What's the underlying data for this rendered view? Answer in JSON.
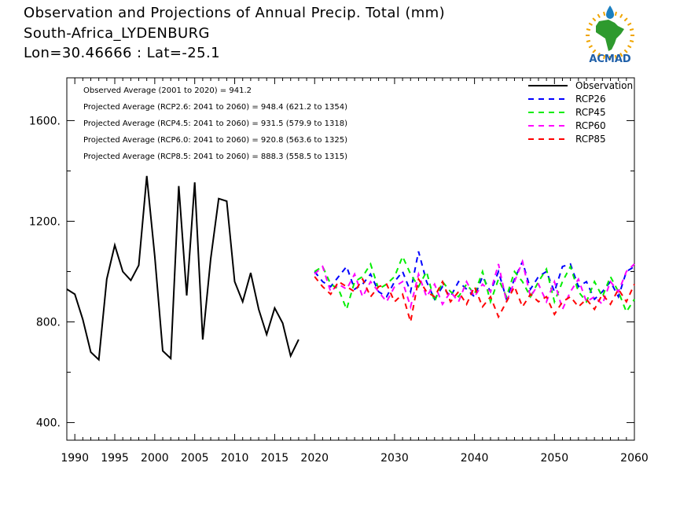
{
  "titles": [
    "Observation and Projections of Annual Precip. Total (mm)",
    "South-Africa_LYDENBURG",
    "Lon=30.46666 : Lat=-25.1"
  ],
  "logo": {
    "text": "ACMAD",
    "colors": {
      "africa": "#2e9a2e",
      "ring": "#f0a500",
      "drop": "#1a7fc0",
      "text": "#1f5fa8"
    }
  },
  "chart_data": {
    "type": "line",
    "xlim": [
      1989,
      2060
    ],
    "ylim": [
      330,
      1770
    ],
    "x_ticks": [
      1990,
      1995,
      2000,
      2005,
      2010,
      2015,
      2020,
      2030,
      2040,
      2050,
      2060
    ],
    "y_ticks": [
      400,
      800,
      1200,
      1600
    ],
    "y_tick_labels": [
      "400.",
      "800.",
      "1200.",
      "1600."
    ],
    "stats": [
      "Observed Average (2001 to 2020) = 941.2",
      "Projected Average (RCP2.6: 2041 to 2060) = 948.4 (621.2 to 1354)",
      "Projected Average (RCP4.5: 2041 to 2060) = 931.5 (579.9 to 1318)",
      "Projected Average (RCP6.0: 2041 to 2060) = 920.8 (563.6 to 1325)",
      "Projected Average (RCP8.5: 2041 to 2060) = 888.3 (558.5 to 1315)"
    ],
    "legend_position": "top-right",
    "series": [
      {
        "name": "Observation",
        "color": "#000000",
        "dashed": false,
        "x": [
          1989,
          1990,
          1991,
          1992,
          1993,
          1994,
          1995,
          1996,
          1997,
          1998,
          1999,
          2000,
          2001,
          2002,
          2003,
          2004,
          2005,
          2006,
          2007,
          2008,
          2009,
          2010,
          2011,
          2012,
          2013,
          2014,
          2015,
          2016,
          2017,
          2018,
          2019
        ],
        "values": [
          930,
          910,
          810,
          680,
          650,
          970,
          1105,
          1000,
          965,
          1025,
          1380,
          1060,
          685,
          655,
          1340,
          905,
          1355,
          730,
          1050,
          1290,
          1280,
          960,
          880,
          995,
          850,
          750,
          855,
          795,
          665,
          730,
          null
        ]
      },
      {
        "name": "RCP26",
        "color": "#0000ff",
        "dashed": true,
        "x": [
          2020,
          2021,
          2022,
          2023,
          2024,
          2025,
          2026,
          2027,
          2028,
          2029,
          2030,
          2031,
          2032,
          2033,
          2034,
          2035,
          2036,
          2037,
          2038,
          2039,
          2040,
          2041,
          2042,
          2043,
          2044,
          2045,
          2046,
          2047,
          2048,
          2049,
          2050,
          2051,
          2052,
          2053,
          2054,
          2055,
          2056,
          2057,
          2058,
          2059,
          2060
        ],
        "values": [
          1000,
          960,
          940,
          980,
          1020,
          930,
          950,
          990,
          920,
          900,
          960,
          1000,
          920,
          1080,
          960,
          890,
          940,
          900,
          960,
          930,
          900,
          980,
          920,
          1000,
          890,
          970,
          1040,
          930,
          980,
          1000,
          920,
          1020,
          1030,
          940,
          960,
          890,
          920,
          960,
          900,
          1000,
          1020
        ]
      },
      {
        "name": "RCP45",
        "color": "#00ee00",
        "dashed": true,
        "x": [
          2020,
          2021,
          2022,
          2023,
          2024,
          2025,
          2026,
          2027,
          2028,
          2029,
          2030,
          2031,
          2032,
          2033,
          2034,
          2035,
          2036,
          2037,
          2038,
          2039,
          2040,
          2041,
          2042,
          2043,
          2044,
          2045,
          2046,
          2047,
          2048,
          2049,
          2050,
          2051,
          2052,
          2053,
          2054,
          2055,
          2056,
          2057,
          2058,
          2059,
          2060
        ],
        "values": [
          1000,
          1020,
          950,
          930,
          850,
          960,
          980,
          1030,
          930,
          950,
          980,
          1060,
          990,
          940,
          1000,
          880,
          960,
          920,
          900,
          950,
          910,
          1000,
          880,
          970,
          900,
          1000,
          960,
          900,
          960,
          1010,
          880,
          960,
          1020,
          920,
          880,
          960,
          900,
          980,
          920,
          840,
          890
        ]
      },
      {
        "name": "RCP60",
        "color": "#ff00ff",
        "dashed": true,
        "x": [
          2020,
          2021,
          2022,
          2023,
          2024,
          2025,
          2026,
          2027,
          2028,
          2029,
          2030,
          2031,
          2032,
          2033,
          2034,
          2035,
          2036,
          2037,
          2038,
          2039,
          2040,
          2041,
          2042,
          2043,
          2044,
          2045,
          2046,
          2047,
          2048,
          2049,
          2050,
          2051,
          2052,
          2053,
          2054,
          2055,
          2056,
          2057,
          2058,
          2059,
          2060
        ],
        "values": [
          990,
          1020,
          920,
          950,
          930,
          990,
          900,
          960,
          920,
          880,
          940,
          960,
          860,
          990,
          900,
          950,
          870,
          920,
          880,
          960,
          900,
          950,
          920,
          1030,
          880,
          960,
          1040,
          900,
          950,
          880,
          960,
          850,
          920,
          970,
          880,
          900,
          870,
          960,
          920,
          1000,
          1030
        ]
      },
      {
        "name": "RCP85",
        "color": "#ff0000",
        "dashed": true,
        "x": [
          2020,
          2021,
          2022,
          2023,
          2024,
          2025,
          2026,
          2027,
          2028,
          2029,
          2030,
          2031,
          2032,
          2033,
          2034,
          2035,
          2036,
          2037,
          2038,
          2039,
          2040,
          2041,
          2042,
          2043,
          2044,
          2045,
          2046,
          2047,
          2048,
          2049,
          2050,
          2051,
          2052,
          2053,
          2054,
          2055,
          2056,
          2057,
          2058,
          2059,
          2060
        ],
        "values": [
          980,
          940,
          910,
          960,
          940,
          920,
          970,
          900,
          940,
          950,
          880,
          910,
          800,
          970,
          920,
          900,
          960,
          880,
          920,
          870,
          940,
          860,
          900,
          820,
          880,
          940,
          860,
          910,
          880,
          900,
          830,
          880,
          900,
          860,
          890,
          850,
          910,
          870,
          930,
          880,
          950
        ]
      }
    ]
  }
}
